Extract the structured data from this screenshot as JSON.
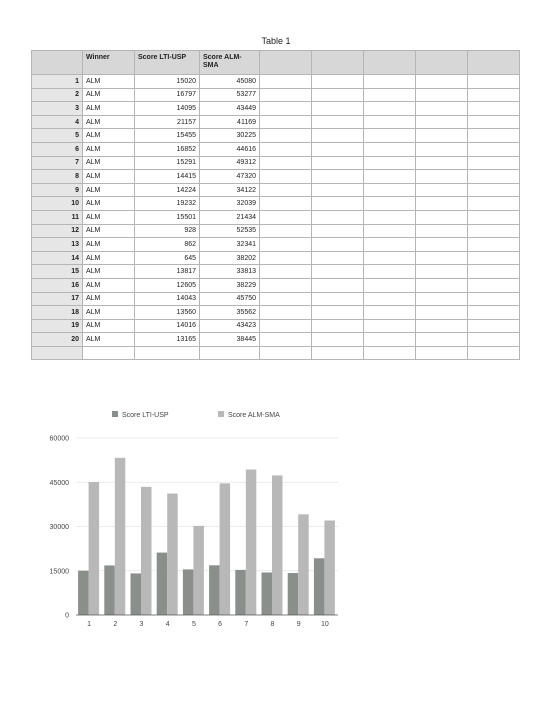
{
  "table": {
    "title": "Table 1",
    "headers": [
      "Winner",
      "Score LTI-USP",
      "Score ALM-SMA"
    ],
    "rows": [
      {
        "n": "1",
        "winner": "ALM",
        "lti": "15020",
        "alm": "45080"
      },
      {
        "n": "2",
        "winner": "ALM",
        "lti": "16797",
        "alm": "53277"
      },
      {
        "n": "3",
        "winner": "ALM",
        "lti": "14095",
        "alm": "43449"
      },
      {
        "n": "4",
        "winner": "ALM",
        "lti": "21157",
        "alm": "41169"
      },
      {
        "n": "5",
        "winner": "ALM",
        "lti": "15455",
        "alm": "30225"
      },
      {
        "n": "6",
        "winner": "ALM",
        "lti": "16852",
        "alm": "44616"
      },
      {
        "n": "7",
        "winner": "ALM",
        "lti": "15291",
        "alm": "49312"
      },
      {
        "n": "8",
        "winner": "ALM",
        "lti": "14415",
        "alm": "47320"
      },
      {
        "n": "9",
        "winner": "ALM",
        "lti": "14224",
        "alm": "34122"
      },
      {
        "n": "10",
        "winner": "ALM",
        "lti": "19232",
        "alm": "32039"
      },
      {
        "n": "11",
        "winner": "ALM",
        "lti": "15501",
        "alm": "21434"
      },
      {
        "n": "12",
        "winner": "ALM",
        "lti": "928",
        "alm": "52535"
      },
      {
        "n": "13",
        "winner": "ALM",
        "lti": "862",
        "alm": "32341"
      },
      {
        "n": "14",
        "winner": "ALM",
        "lti": "645",
        "alm": "38202"
      },
      {
        "n": "15",
        "winner": "ALM",
        "lti": "13817",
        "alm": "33813"
      },
      {
        "n": "16",
        "winner": "ALM",
        "lti": "12605",
        "alm": "38229"
      },
      {
        "n": "17",
        "winner": "ALM",
        "lti": "14043",
        "alm": "45750"
      },
      {
        "n": "18",
        "winner": "ALM",
        "lti": "13560",
        "alm": "35562"
      },
      {
        "n": "19",
        "winner": "ALM",
        "lti": "14016",
        "alm": "43423"
      },
      {
        "n": "20",
        "winner": "ALM",
        "lti": "13165",
        "alm": "38445"
      }
    ]
  },
  "chart_data": {
    "type": "bar",
    "categories": [
      "1",
      "2",
      "3",
      "4",
      "5",
      "6",
      "7",
      "8",
      "9",
      "10"
    ],
    "series": [
      {
        "name": "Score LTI-USP",
        "color": "#8a8f8c",
        "values": [
          15020,
          16797,
          14095,
          21157,
          15455,
          16852,
          15291,
          14415,
          14224,
          19232
        ]
      },
      {
        "name": "Score ALM-SMA",
        "color": "#b8b8b8",
        "values": [
          45080,
          53277,
          43449,
          41169,
          30225,
          44616,
          49312,
          47320,
          34122,
          32039
        ]
      }
    ],
    "ylim": [
      0,
      60000
    ],
    "yticks": [
      0,
      15000,
      30000,
      45000,
      60000
    ],
    "grid": true,
    "legend": "top"
  }
}
